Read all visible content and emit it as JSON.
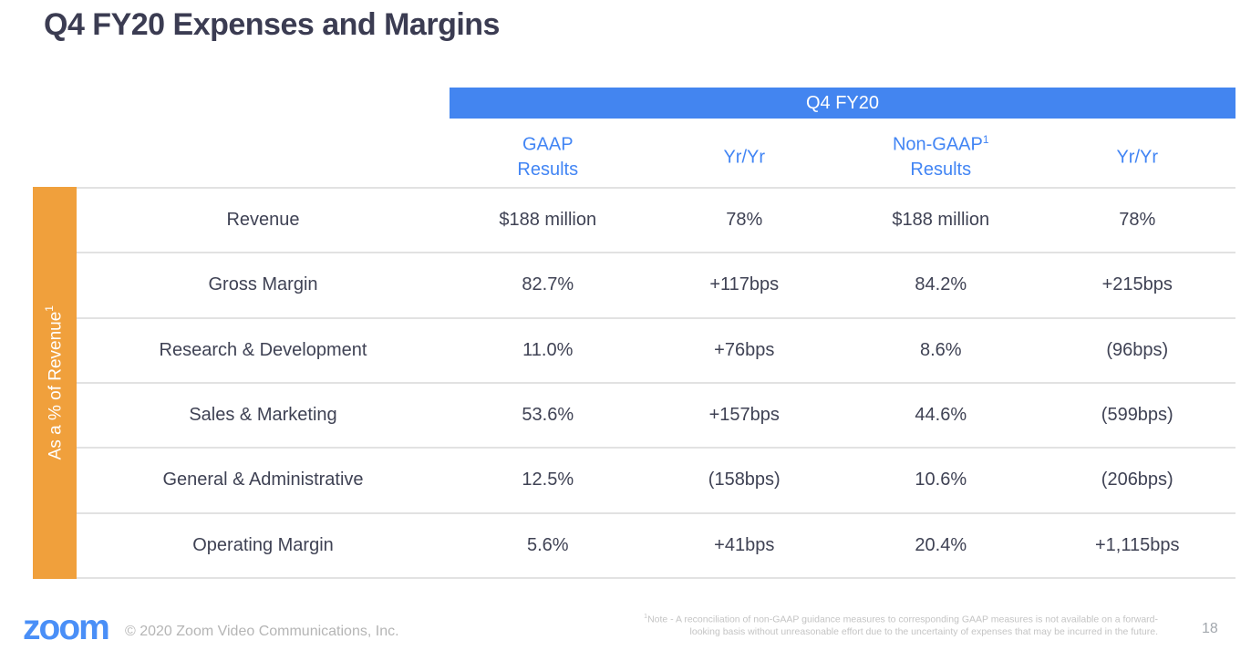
{
  "slide": {
    "title": "Q4 FY20 Expenses and Margins"
  },
  "table": {
    "group_header": "Q4 FY20",
    "row_axis_label": "As a % of Revenue",
    "row_axis_superscript": "1",
    "columns": [
      {
        "label": "GAAP",
        "sup": "",
        "label2": "Results"
      },
      {
        "label": "Yr/Yr",
        "sup": "",
        "label2": ""
      },
      {
        "label": "Non-GAAP",
        "sup": "1",
        "label2": "Results"
      },
      {
        "label": "Yr/Yr",
        "sup": "",
        "label2": ""
      }
    ],
    "rows": [
      {
        "label": "Revenue",
        "gaap": "$188 million",
        "gaap_yoy": "78%",
        "non_gaap": "$188 million",
        "non_gaap_yoy": "78%"
      },
      {
        "label": "Gross Margin",
        "gaap": "82.7%",
        "gaap_yoy": "+117bps",
        "non_gaap": "84.2%",
        "non_gaap_yoy": "+215bps"
      },
      {
        "label": "Research & Development",
        "gaap": "11.0%",
        "gaap_yoy": "+76bps",
        "non_gaap": "8.6%",
        "non_gaap_yoy": "(96bps)"
      },
      {
        "label": "Sales & Marketing",
        "gaap": "53.6%",
        "gaap_yoy": "+157bps",
        "non_gaap": "44.6%",
        "non_gaap_yoy": "(599bps)"
      },
      {
        "label": "General & Administrative",
        "gaap": "12.5%",
        "gaap_yoy": "(158bps)",
        "non_gaap": "10.6%",
        "non_gaap_yoy": "(206bps)"
      },
      {
        "label": "Operating Margin",
        "gaap": "5.6%",
        "gaap_yoy": "+41bps",
        "non_gaap": "20.4%",
        "non_gaap_yoy": "+1,115bps"
      }
    ]
  },
  "chart_data": {
    "type": "table",
    "title": "Q4 FY20 Expenses and Margins",
    "group_header": "Q4 FY20",
    "row_axis": "As a % of Revenue",
    "columns": [
      "GAAP Results",
      "Yr/Yr",
      "Non-GAAP Results",
      "Yr/Yr"
    ],
    "rows": [
      [
        "Revenue",
        "$188 million",
        "78%",
        "$188 million",
        "78%"
      ],
      [
        "Gross Margin",
        "82.7%",
        "+117bps",
        "84.2%",
        "+215bps"
      ],
      [
        "Research & Development",
        "11.0%",
        "+76bps",
        "8.6%",
        "(96bps)"
      ],
      [
        "Sales & Marketing",
        "53.6%",
        "+157bps",
        "44.6%",
        "(599bps)"
      ],
      [
        "General & Administrative",
        "12.5%",
        "(158bps)",
        "10.6%",
        "(206bps)"
      ],
      [
        "Operating Margin",
        "5.6%",
        "+41bps",
        "20.4%",
        "+1,115bps"
      ]
    ]
  },
  "colors": {
    "header_bar_blue": "#4385f0",
    "header_text_blue": "#4285f4",
    "axis_band_orange": "#f0a03c",
    "body_text": "#3f4254",
    "title_text": "#3b3c52",
    "logo_blue": "#4a8ff7"
  },
  "footer": {
    "logo_text": "zoom",
    "copyright": "© 2020 Zoom Video Communications, Inc.",
    "note_sup": "1",
    "note_line1": "Note - A reconciliation of non-GAAP guidance measures to corresponding GAAP measures is not available on a forward-",
    "note_line2": "looking basis without unreasonable effort due to the uncertainty of expenses that may be incurred in the future.",
    "page_number": "18"
  }
}
